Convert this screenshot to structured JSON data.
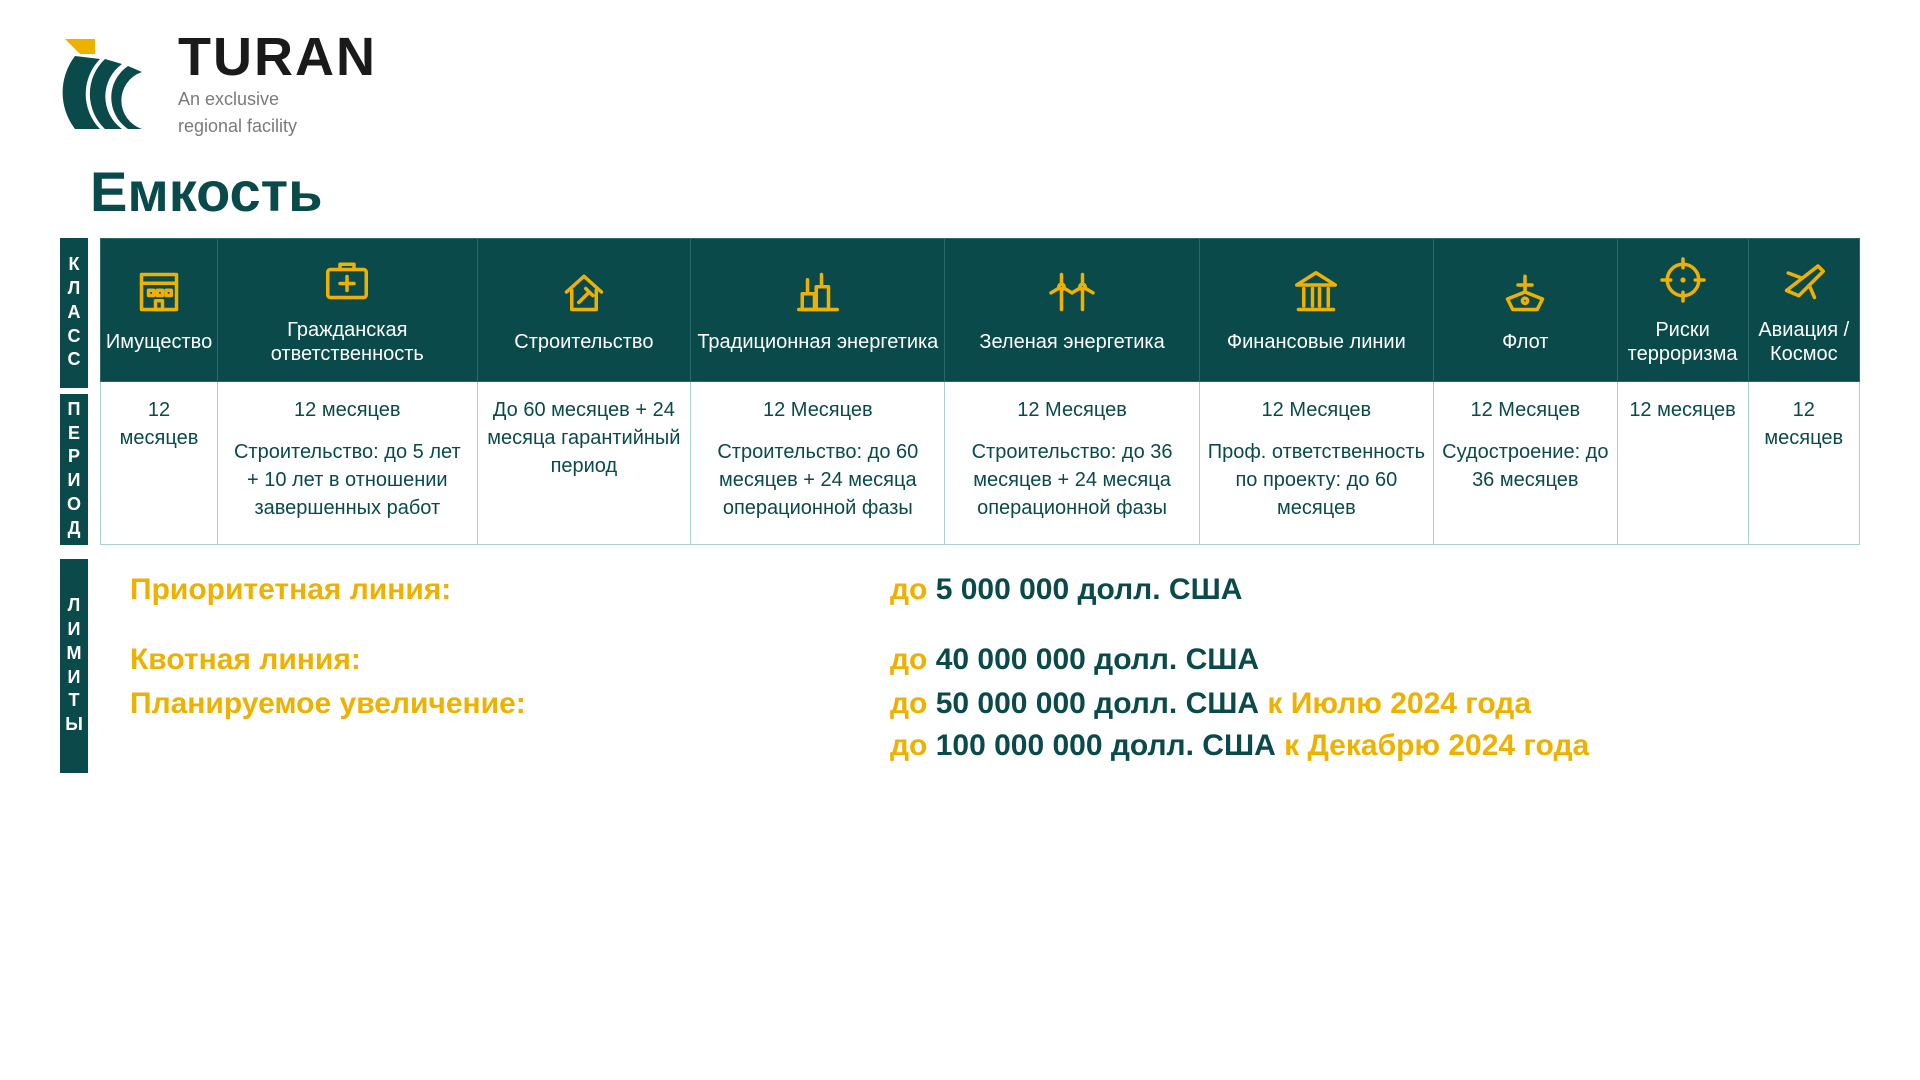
{
  "colors": {
    "brand_dark": "#0a4a4a",
    "accent_yellow": "#efb100",
    "text_dark": "#1a1a1a",
    "text_gray": "#7a7a7a",
    "border": "#a8d0d0"
  },
  "logo": {
    "name": "TURAN",
    "tagline_l1": "An exclusive",
    "tagline_l2": "regional facility"
  },
  "title": "Емкость",
  "side_labels": {
    "class": "КЛАСС",
    "period": "ПЕРИОД",
    "limits": "ЛИМИТЫ"
  },
  "classes": [
    {
      "key": "property",
      "label": "Имущество",
      "period_main": "12 месяцев",
      "period_extra": ""
    },
    {
      "key": "liability",
      "label": "Гражданская ответственность",
      "period_main": "12 месяцев",
      "period_extra": "Строительство: до 5 лет + 10 лет в отношении завершенных работ"
    },
    {
      "key": "construct",
      "label": "Строительство",
      "period_main": "До 60 месяцев + 24 месяца гарантийный период",
      "period_extra": ""
    },
    {
      "key": "energy",
      "label": "Традиционная энергетика",
      "period_main": "12 Месяцев",
      "period_extra": "Строительство: до 60 месяцев + 24 месяца операционной фазы"
    },
    {
      "key": "green",
      "label": "Зеленая энергетика",
      "period_main": "12 Месяцев",
      "period_extra": "Строительство: до 36 месяцев + 24 месяца операционной фазы"
    },
    {
      "key": "finance",
      "label": "Финансовые линии",
      "period_main": "12 Месяцев",
      "period_extra": "Проф. ответственность по проекту: до 60 месяцев"
    },
    {
      "key": "marine",
      "label": "Флот",
      "period_main": "12 Месяцев",
      "period_extra": "Судостроение: до 36 месяцев"
    },
    {
      "key": "terror",
      "label": "Риски терроризма",
      "period_main": "12 месяцев",
      "period_extra": ""
    },
    {
      "key": "aviation",
      "label": "Авиация / Космос",
      "period_main": "12 месяцев",
      "period_extra": ""
    }
  ],
  "limits": {
    "priority": {
      "label": "Приоритетная линия:",
      "value_prefix": "до ",
      "value_amount": "5 000 000 долл. США"
    },
    "quota": {
      "label": "Квотная линия:",
      "value_prefix": "до ",
      "value_amount": "40 000 000 долл. США"
    },
    "planned": {
      "label": "Планируемое увеличение:",
      "lines": [
        {
          "prefix": "до ",
          "amount": "50 000 000 долл. США ",
          "suffix": "к Июлю 2024 года"
        },
        {
          "prefix": "до ",
          "amount": "100 000 000 долл. США ",
          "suffix": "к Декабрю 2024 года"
        }
      ]
    }
  },
  "icons": {
    "property": "building",
    "liability": "medkit",
    "construct": "house-hammer",
    "energy": "plant",
    "green": "wind",
    "finance": "bank",
    "marine": "ship",
    "terror": "target",
    "aviation": "plane"
  }
}
